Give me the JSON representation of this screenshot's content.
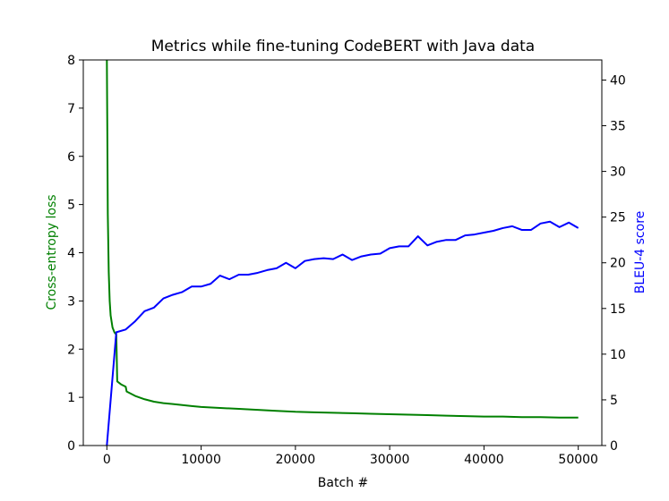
{
  "chart_data": {
    "type": "line",
    "title": "Metrics while fine-tuning CodeBERT with Java data",
    "xlabel": "Batch #",
    "ylabel_left": "Cross-entropy loss",
    "ylabel_right": "BLEU-4 score",
    "xlim": [
      -2500,
      52500
    ],
    "ylim_left": [
      0,
      8
    ],
    "ylim_right": [
      0,
      42.2
    ],
    "xticks": [
      0,
      10000,
      20000,
      30000,
      40000,
      50000
    ],
    "yticks_left": [
      0,
      1,
      2,
      3,
      4,
      5,
      6,
      7,
      8
    ],
    "yticks_right": [
      0,
      5,
      10,
      15,
      20,
      25,
      30,
      35,
      40
    ],
    "grid": false,
    "colors": {
      "loss": "#008000",
      "bleu": "#0000ff",
      "axes": "#000000"
    },
    "series": [
      {
        "axis": "left",
        "color": "#008000",
        "x": [
          0,
          50,
          100,
          200,
          300,
          400,
          600,
          800,
          1000,
          1100,
          1500,
          2000,
          2100,
          3000,
          4000,
          5000,
          6000,
          7000,
          8000,
          9000,
          10000,
          12000,
          14000,
          16000,
          18000,
          20000,
          22000,
          24000,
          26000,
          28000,
          30000,
          32000,
          34000,
          36000,
          38000,
          40000,
          42000,
          44000,
          46000,
          48000,
          50000
        ],
        "y": [
          8.0,
          6.5,
          4.8,
          3.6,
          3.0,
          2.7,
          2.45,
          2.35,
          2.3,
          1.33,
          1.27,
          1.22,
          1.12,
          1.03,
          0.96,
          0.91,
          0.88,
          0.86,
          0.84,
          0.82,
          0.8,
          0.78,
          0.76,
          0.74,
          0.72,
          0.7,
          0.69,
          0.68,
          0.67,
          0.66,
          0.65,
          0.64,
          0.63,
          0.62,
          0.61,
          0.6,
          0.6,
          0.59,
          0.59,
          0.58,
          0.58
        ]
      },
      {
        "axis": "right",
        "color": "#0000ff",
        "x": [
          0,
          1000,
          2000,
          3000,
          4000,
          5000,
          6000,
          7000,
          8000,
          9000,
          10000,
          11000,
          12000,
          13000,
          14000,
          15000,
          16000,
          17000,
          18000,
          19000,
          20000,
          21000,
          22000,
          23000,
          24000,
          25000,
          26000,
          27000,
          28000,
          29000,
          30000,
          31000,
          32000,
          33000,
          34000,
          35000,
          36000,
          37000,
          38000,
          39000,
          40000,
          41000,
          42000,
          43000,
          44000,
          45000,
          46000,
          47000,
          48000,
          49000,
          50000
        ],
        "y": [
          0.0,
          12.4,
          12.7,
          13.6,
          14.7,
          15.1,
          16.1,
          16.5,
          16.8,
          17.4,
          17.4,
          17.7,
          18.6,
          18.2,
          18.7,
          18.7,
          18.9,
          19.2,
          19.4,
          20.0,
          19.4,
          20.2,
          20.4,
          20.5,
          20.4,
          20.9,
          20.3,
          20.7,
          20.9,
          21.0,
          21.6,
          21.8,
          21.8,
          22.9,
          21.9,
          22.3,
          22.5,
          22.5,
          23.0,
          23.1,
          23.3,
          23.5,
          23.8,
          24.0,
          23.6,
          23.6,
          24.3,
          24.5,
          23.9,
          24.4,
          23.8
        ]
      }
    ]
  }
}
